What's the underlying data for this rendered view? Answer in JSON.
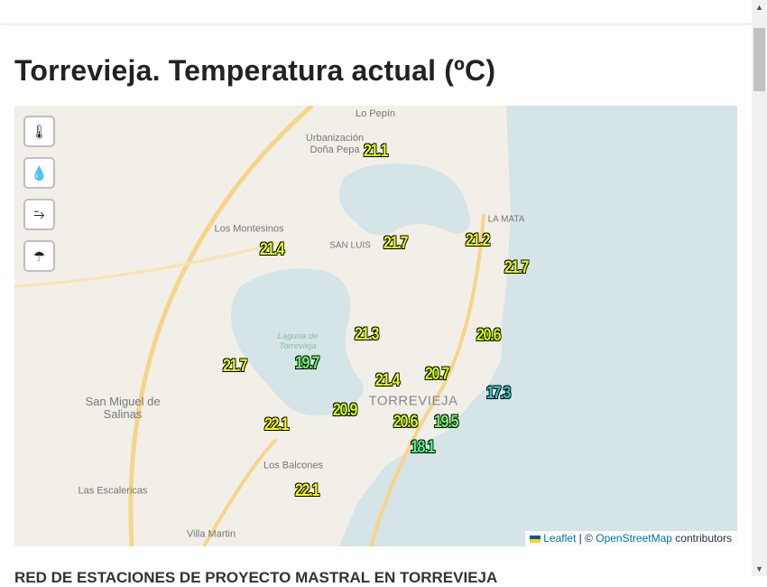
{
  "page": {
    "title": "Torrevieja. Temperatura actual (ºC)",
    "section_heading": "RED DE ESTACIONES DE PROYECTO MASTRAL EN TORREVIEJA"
  },
  "map": {
    "controls": [
      {
        "icon": "thermometer-icon",
        "glyph": "🌡"
      },
      {
        "icon": "humidity-drop-icon",
        "glyph": "💧"
      },
      {
        "icon": "wind-icon",
        "glyph": "⥲"
      },
      {
        "icon": "umbrella-icon",
        "glyph": "☂"
      }
    ],
    "places": {
      "lo_pepin": "Urbanización\nLo Pepín",
      "dona_pepa": "Urbanización\nDoña Pepa",
      "montesinos": "Los Montesinos",
      "san_luis": "SAN LUIS",
      "la_mata": "LA MATA",
      "laguna": "Laguna de\nTorrevieja",
      "san_miguel": "San Miguel de\nSalinas",
      "torrevieja": "TORREVIEJA",
      "balcones": "Los Balcones",
      "escalericas": "Las Escalericas",
      "villa_martin": "Villa Martin"
    },
    "colors": {
      "land": "#f2efe9",
      "water": "#d5e4e6",
      "t22": "#ffff00",
      "t21": "#e0ff1a",
      "t20": "#ccff00",
      "t19": "#66ff66",
      "t18": "#4dff80",
      "t17": "#33cccc"
    },
    "stations": [
      "21.1",
      "21.4",
      "21.7",
      "21.2",
      "21.7",
      "21.3",
      "20.6",
      "21.7",
      "19.7",
      "21.4",
      "20.7",
      "17.3",
      "20.9",
      "20.6",
      "19.5",
      "22.1",
      "18.1",
      "22.1"
    ],
    "attribution": {
      "leaflet": "Leaflet",
      "sep": " | © ",
      "osm": "OpenStreetMap",
      "rest": " contributors"
    }
  }
}
